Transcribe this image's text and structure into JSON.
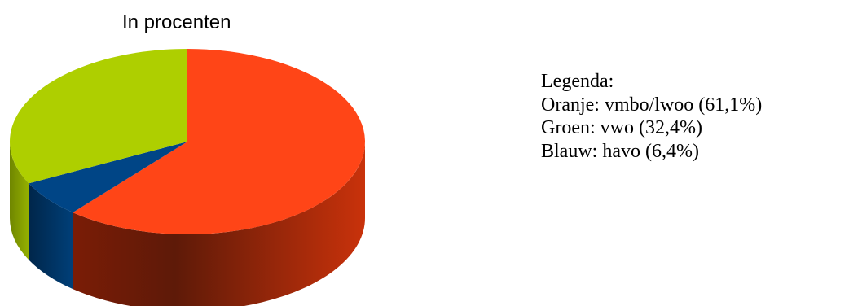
{
  "chart_data": {
    "type": "pie",
    "title": "In procenten",
    "slices": [
      {
        "label": "vmbo/lwoo",
        "value": 61.1,
        "color": "#ff4517"
      },
      {
        "label": "havo",
        "value": 6.4,
        "color": "#004586"
      },
      {
        "label": "vwo",
        "value": 32.4,
        "color": "#aecf00"
      }
    ],
    "three_d": true
  },
  "legend": {
    "heading": "Legenda:",
    "entries": [
      "Oranje: vmbo/lwoo (61,1%)",
      "Groen: vwo (32,4%)",
      "Blauw: havo (6,4%)"
    ]
  }
}
